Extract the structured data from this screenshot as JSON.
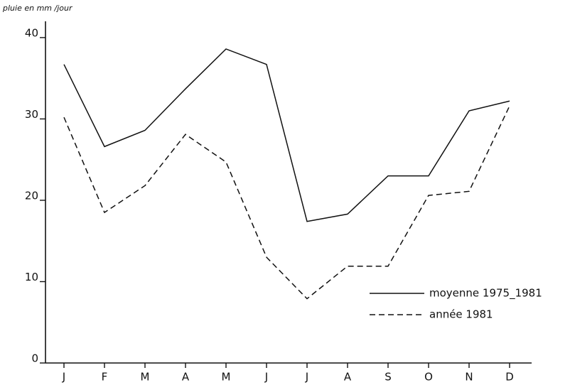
{
  "chart_data": {
    "type": "line",
    "y_label": "pluie en mm /jour",
    "categories": [
      "J",
      "F",
      "M",
      "A",
      "M",
      "J",
      "J",
      "A",
      "S",
      "O",
      "N",
      "D"
    ],
    "series": [
      {
        "name": "moyenne 1975_1981",
        "color": "#111111",
        "dash": "solid",
        "values": [
          36.7,
          26.6,
          28.6,
          33.7,
          38.6,
          36.7,
          17.4,
          18.3,
          23.0,
          23.0,
          31.0,
          32.2
        ]
      },
      {
        "name": "année 1981",
        "color": "#111111",
        "dash": "dashed",
        "values": [
          30.2,
          18.5,
          21.8,
          28.1,
          24.7,
          13.0,
          7.9,
          11.9,
          11.9,
          20.6,
          21.1,
          31.6
        ]
      }
    ],
    "ylim": [
      0,
      42
    ],
    "yticks": [
      0,
      10,
      20,
      30,
      40
    ],
    "grid": false,
    "legend": "lower right"
  }
}
